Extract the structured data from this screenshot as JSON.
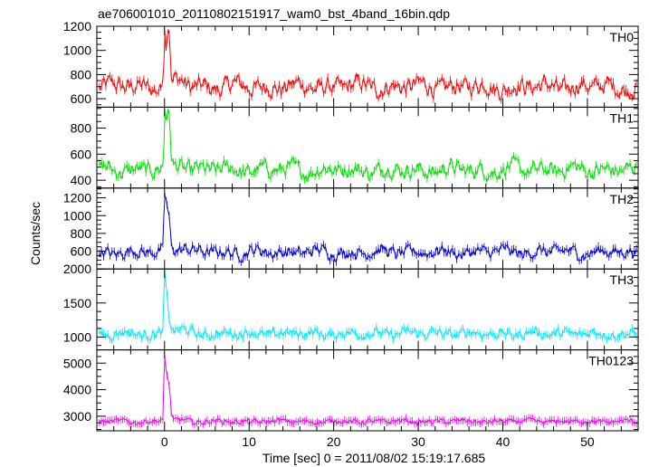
{
  "title": "ae706001010_20110802151917_wam0_bst_4band_16bin.qdp",
  "colors": {
    "TH0": "#ff0000",
    "TH1": "#00e000",
    "TH2": "#0000dd",
    "TH3": "#00e8ff",
    "TH0123": "#ee00ee",
    "axes": "#000000"
  },
  "chart_data": {
    "type": "line",
    "title": "ae706001010_20110802151917_wam0_bst_4band_16bin.qdp",
    "xlabel": "Time [sec] 0 = 2011/08/02 15:19:17.685",
    "ylabel": "Counts/sec",
    "xlim": [
      -8,
      56
    ],
    "x_ticks": [
      0,
      10,
      20,
      30,
      40,
      50
    ],
    "grid": false,
    "panels": [
      {
        "name": "TH0",
        "ylim": [
          530,
          1200
        ],
        "y_ticks": [
          600,
          800,
          1000,
          1200
        ],
        "baseline": 700,
        "noise": 55,
        "burst": [
          [
            -0.4,
            700
          ],
          [
            -0.1,
            820
          ],
          [
            0.0,
            1160
          ],
          [
            0.2,
            1010
          ],
          [
            0.4,
            1200
          ],
          [
            0.6,
            1120
          ],
          [
            0.8,
            760
          ],
          [
            1.0,
            720
          ]
        ]
      },
      {
        "name": "TH1",
        "ylim": [
          340,
          960
        ],
        "y_ticks": [
          400,
          600,
          800
        ],
        "baseline": 480,
        "noise": 45,
        "burst": [
          [
            -0.4,
            480
          ],
          [
            -0.1,
            560
          ],
          [
            0.0,
            940
          ],
          [
            0.2,
            870
          ],
          [
            0.4,
            930
          ],
          [
            0.6,
            880
          ],
          [
            0.8,
            590
          ],
          [
            1.0,
            520
          ]
        ]
      },
      {
        "name": "TH2",
        "ylim": [
          400,
          1310
        ],
        "y_ticks": [
          600,
          800,
          1000,
          1200
        ],
        "baseline": 590,
        "noise": 50,
        "burst": [
          [
            -0.2,
            600
          ],
          [
            0.0,
            1240
          ],
          [
            0.2,
            1180
          ],
          [
            0.4,
            1060
          ],
          [
            0.6,
            950
          ],
          [
            0.8,
            680
          ],
          [
            1.0,
            620
          ]
        ]
      },
      {
        "name": "TH3",
        "ylim": [
          810,
          2000
        ],
        "y_ticks": [
          1000,
          1500,
          2000
        ],
        "baseline": 1050,
        "noise": 55,
        "burst": [
          [
            -0.2,
            1060
          ],
          [
            0.0,
            1980
          ],
          [
            0.2,
            1720
          ],
          [
            0.4,
            1450
          ],
          [
            0.6,
            1220
          ],
          [
            0.8,
            1120
          ],
          [
            1.0,
            1080
          ]
        ]
      },
      {
        "name": "TH0123",
        "ylim": [
          2450,
          5500
        ],
        "y_ticks": [
          3000,
          4000,
          5000
        ],
        "baseline": 2800,
        "noise": 70,
        "burst": [
          [
            -0.2,
            2850
          ],
          [
            0.0,
            5350
          ],
          [
            0.2,
            4700
          ],
          [
            0.4,
            4400
          ],
          [
            0.6,
            4100
          ],
          [
            0.8,
            3100
          ],
          [
            1.0,
            2900
          ]
        ]
      }
    ]
  }
}
